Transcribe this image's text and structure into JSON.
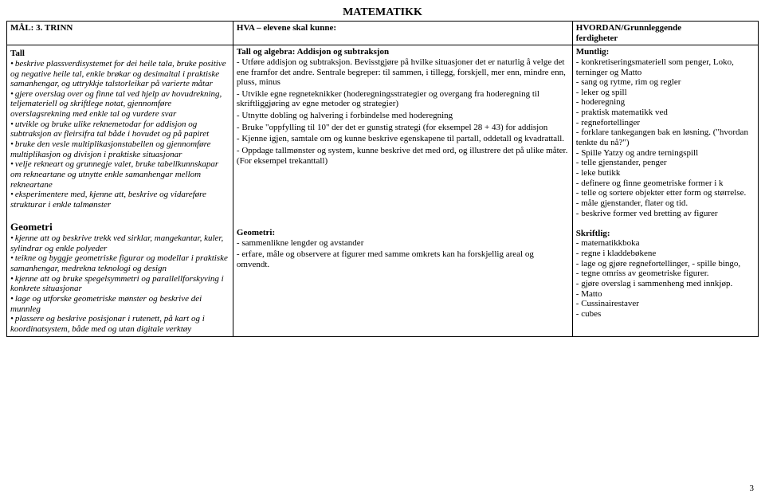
{
  "title": "MATEMATIKK",
  "header": {
    "col1": "MÅL: 3. TRINN",
    "col2": "HVA – elevene skal kunne:",
    "col3a": "HVORDAN/Grunnleggende",
    "col3b": "ferdigheter"
  },
  "col1": {
    "tall_head": "Tall",
    "tall_items": [
      "beskrive plassverdisystemet for dei heile tala, bruke positive og negative heile tal, enkle brøkar og desimaltal i praktiske samanhengar, og uttrykkje talstorleikar på varierte måtar",
      "gjere overslag over og finne tal ved hjelp av hovudrekning, teljemateriell og skriftlege notat, gjennomføre overslagsrekning med enkle tal og vurdere svar",
      "utvikle og bruke ulike reknemetodar for addisjon og subtraksjon av fleirsifra tal både i hovudet og på papiret",
      "bruke den vesle multiplikasjonstabellen og gjennomføre multiplikasjon og divisjon i praktiske situasjonar",
      "velje rekneart og grunnegje valet, bruke tabellkunnskapar om rekneartane og utnytte enkle samanhengar mellom rekneartane",
      "eksperimentere med, kjenne att, beskrive og vidareføre strukturar i enkle talmønster"
    ],
    "geo_head": "Geometri",
    "geo_items": [
      "kjenne att og beskrive trekk ved sirklar, mangekantar, kuler, sylindrar og enkle polyeder",
      "teikne og byggje geometriske figurar og modellar i praktiske samanhengar, medrekna teknologi og design",
      "kjenne att og bruke spegelsymmetri og parallellforskyving i konkrete situasjonar",
      "lage og utforske geometriske mønster og beskrive dei munnleg",
      "plassere og beskrive posisjonar i rutenett, på kart og i koordinatsystem, både med og utan digitale verktøy"
    ]
  },
  "col2": {
    "tall_head": "Tall og algebra: Addisjon og subtraksjon",
    "tall_body": [
      "- Utføre addisjon og subtraksjon. Bevisstgjøre på hvilke situasjoner det er naturlig å velge det ene framfor det andre. Sentrale begreper: til sammen, i tillegg, forskjell, mer enn, mindre enn, pluss, minus",
      "- Utvikle egne regneteknikker (hoderegningsstrategier og overgang fra hoderegning til skriftliggjøring av egne metoder og strategier)",
      "- Utnytte dobling og halvering i forbindelse med hoderegning",
      "- Bruke \"oppfylling til 10\" der det er gunstig strategi (for eksempel 28 + 43) for addisjon",
      "- Kjenne igjen, samtale om og kunne beskrive egenskapene til partall, oddetall og kvadrattall.",
      "- Oppdage tallmønster og system, kunne beskrive det med ord, og illustrere det på ulike måter. (For eksempel trekanttall)"
    ],
    "geo_head": "Geometri:",
    "geo_body": [
      "- sammenlikne lengder og avstander",
      "- erfare, måle og observere at figurer med samme omkrets kan ha forskjellig areal og omvendt."
    ]
  },
  "col3": {
    "muntlig_head": "Muntlig:",
    "muntlig_items": [
      "konkretiseringsmateriell som penger, Loko, terninger og Matto",
      "sang og rytme, rim og regler",
      "leker og spill",
      "hoderegning",
      "praktisk matematikk ved",
      "regnefortellinger",
      "forklare tankegangen bak en løsning. (\"hvordan tenkte du nå?\")",
      "Spille Yatzy og andre terningspill",
      "telle gjenstander, penger",
      "leke butikk",
      "definere og finne geometriske former i k",
      "telle og sortere objekter etter form og størrelse.",
      "måle gjenstander, flater og tid.",
      "beskrive former ved bretting av figurer"
    ],
    "skriftlig_head": "Skriftlig:",
    "skriftlig_items": [
      "matematikkboka",
      "regne i kladdebøkene",
      "lage og gjøre regnefortellinger, - spille bingo,",
      "tegne omriss av geometriske figurer.",
      "gjøre overslag i sammenheng med innkjøp.",
      "Matto",
      "Cussinairestaver",
      "cubes"
    ]
  },
  "page_number": "3"
}
